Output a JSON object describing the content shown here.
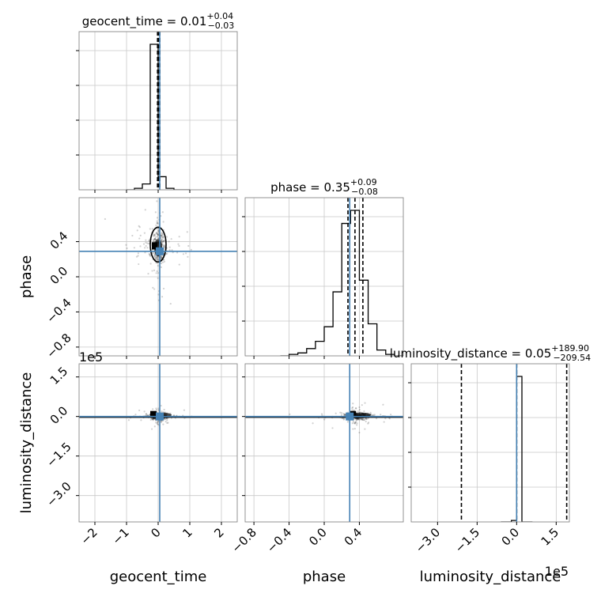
{
  "chart_data": {
    "type": "corner",
    "parameters": [
      "geocent_time",
      "phase",
      "luminosity_distance"
    ],
    "injection": {
      "geocent_time": 0.05,
      "phase": 0.29,
      "luminosity_distance": 0
    },
    "titles": [
      {
        "name": "geocent_time",
        "median": "0.01",
        "plus": "+0.04",
        "minus": "−0.03"
      },
      {
        "name": "phase",
        "median": "0.35",
        "plus": "+0.09",
        "minus": "−0.08"
      },
      {
        "name": "luminosity_distance",
        "median": "0.05",
        "plus": "+189.90",
        "minus": "−209.54"
      }
    ],
    "axes": {
      "geocent_time": {
        "range": [
          -2.5,
          2.5
        ],
        "ticks": [
          -2,
          -1,
          0,
          1,
          2
        ],
        "tick_labels": [
          "−2",
          "−1",
          "0",
          "1",
          "2"
        ]
      },
      "phase": {
        "range": [
          -0.9,
          0.9
        ],
        "ticks": [
          -0.8,
          -0.4,
          0.0,
          0.4
        ],
        "tick_labels": [
          "−0.8",
          "−0.4",
          "0.0",
          "0.4"
        ]
      },
      "luminosity_distance": {
        "range": [
          -400000,
          200000
        ],
        "ticks": [
          -300000,
          -150000,
          0,
          150000
        ],
        "tick_labels": [
          "−3.0",
          "−1.5",
          "0.0",
          "1.5"
        ],
        "offset_label": "1e5"
      }
    },
    "histograms": {
      "geocent_time": {
        "bins": [
          -1.0,
          -0.75,
          -0.5,
          -0.25,
          0.0,
          0.25,
          0.5,
          0.75,
          1.0
        ],
        "density": [
          0.0,
          0.01,
          0.04,
          1.0,
          0.09,
          0.01,
          0.0,
          0.0
        ],
        "quantiles": [
          -0.02,
          0.01,
          0.05
        ]
      },
      "phase": {
        "bins": [
          -0.5,
          -0.4,
          -0.3,
          -0.2,
          -0.1,
          0.0,
          0.1,
          0.2,
          0.3,
          0.4,
          0.5,
          0.6,
          0.7,
          0.8,
          0.9
        ],
        "density": [
          0.0,
          0.01,
          0.02,
          0.05,
          0.1,
          0.2,
          0.44,
          0.91,
          1.0,
          0.52,
          0.22,
          0.04,
          0.01,
          0.0
        ],
        "quantiles": [
          0.27,
          0.35,
          0.44
        ]
      },
      "luminosity_distance": {
        "bins": [
          -60000,
          -20000,
          0,
          20000,
          60000
        ],
        "density": [
          0.0,
          0.01,
          1.0,
          0.0
        ],
        "quantiles": [
          -209540,
          50,
          189900
        ]
      }
    },
    "axis_labels": {
      "x": [
        "geocent_time",
        "phase",
        "luminosity_distance"
      ],
      "y": [
        "phase",
        "luminosity_distance"
      ]
    },
    "grid": true
  }
}
